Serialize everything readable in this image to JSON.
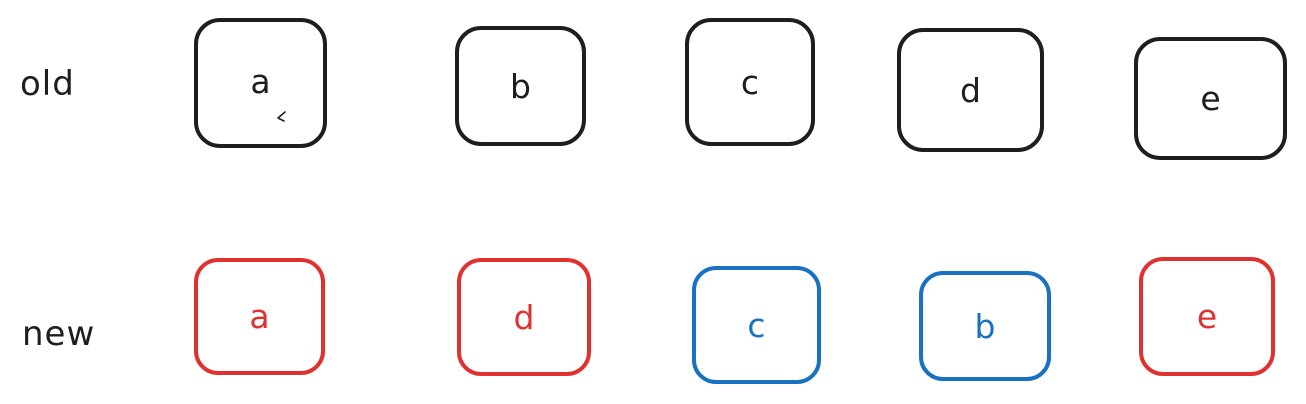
{
  "rows": {
    "old": {
      "label": "old",
      "nodes": [
        "a",
        "b",
        "c",
        "d",
        "e"
      ]
    },
    "new": {
      "label": "new",
      "nodes": [
        "a",
        "d",
        "c",
        "b",
        "e"
      ]
    }
  },
  "colors": {
    "old_stroke": "#1e1e1e",
    "reused_node": "#e03131",
    "moved_node": "#1971c2"
  }
}
